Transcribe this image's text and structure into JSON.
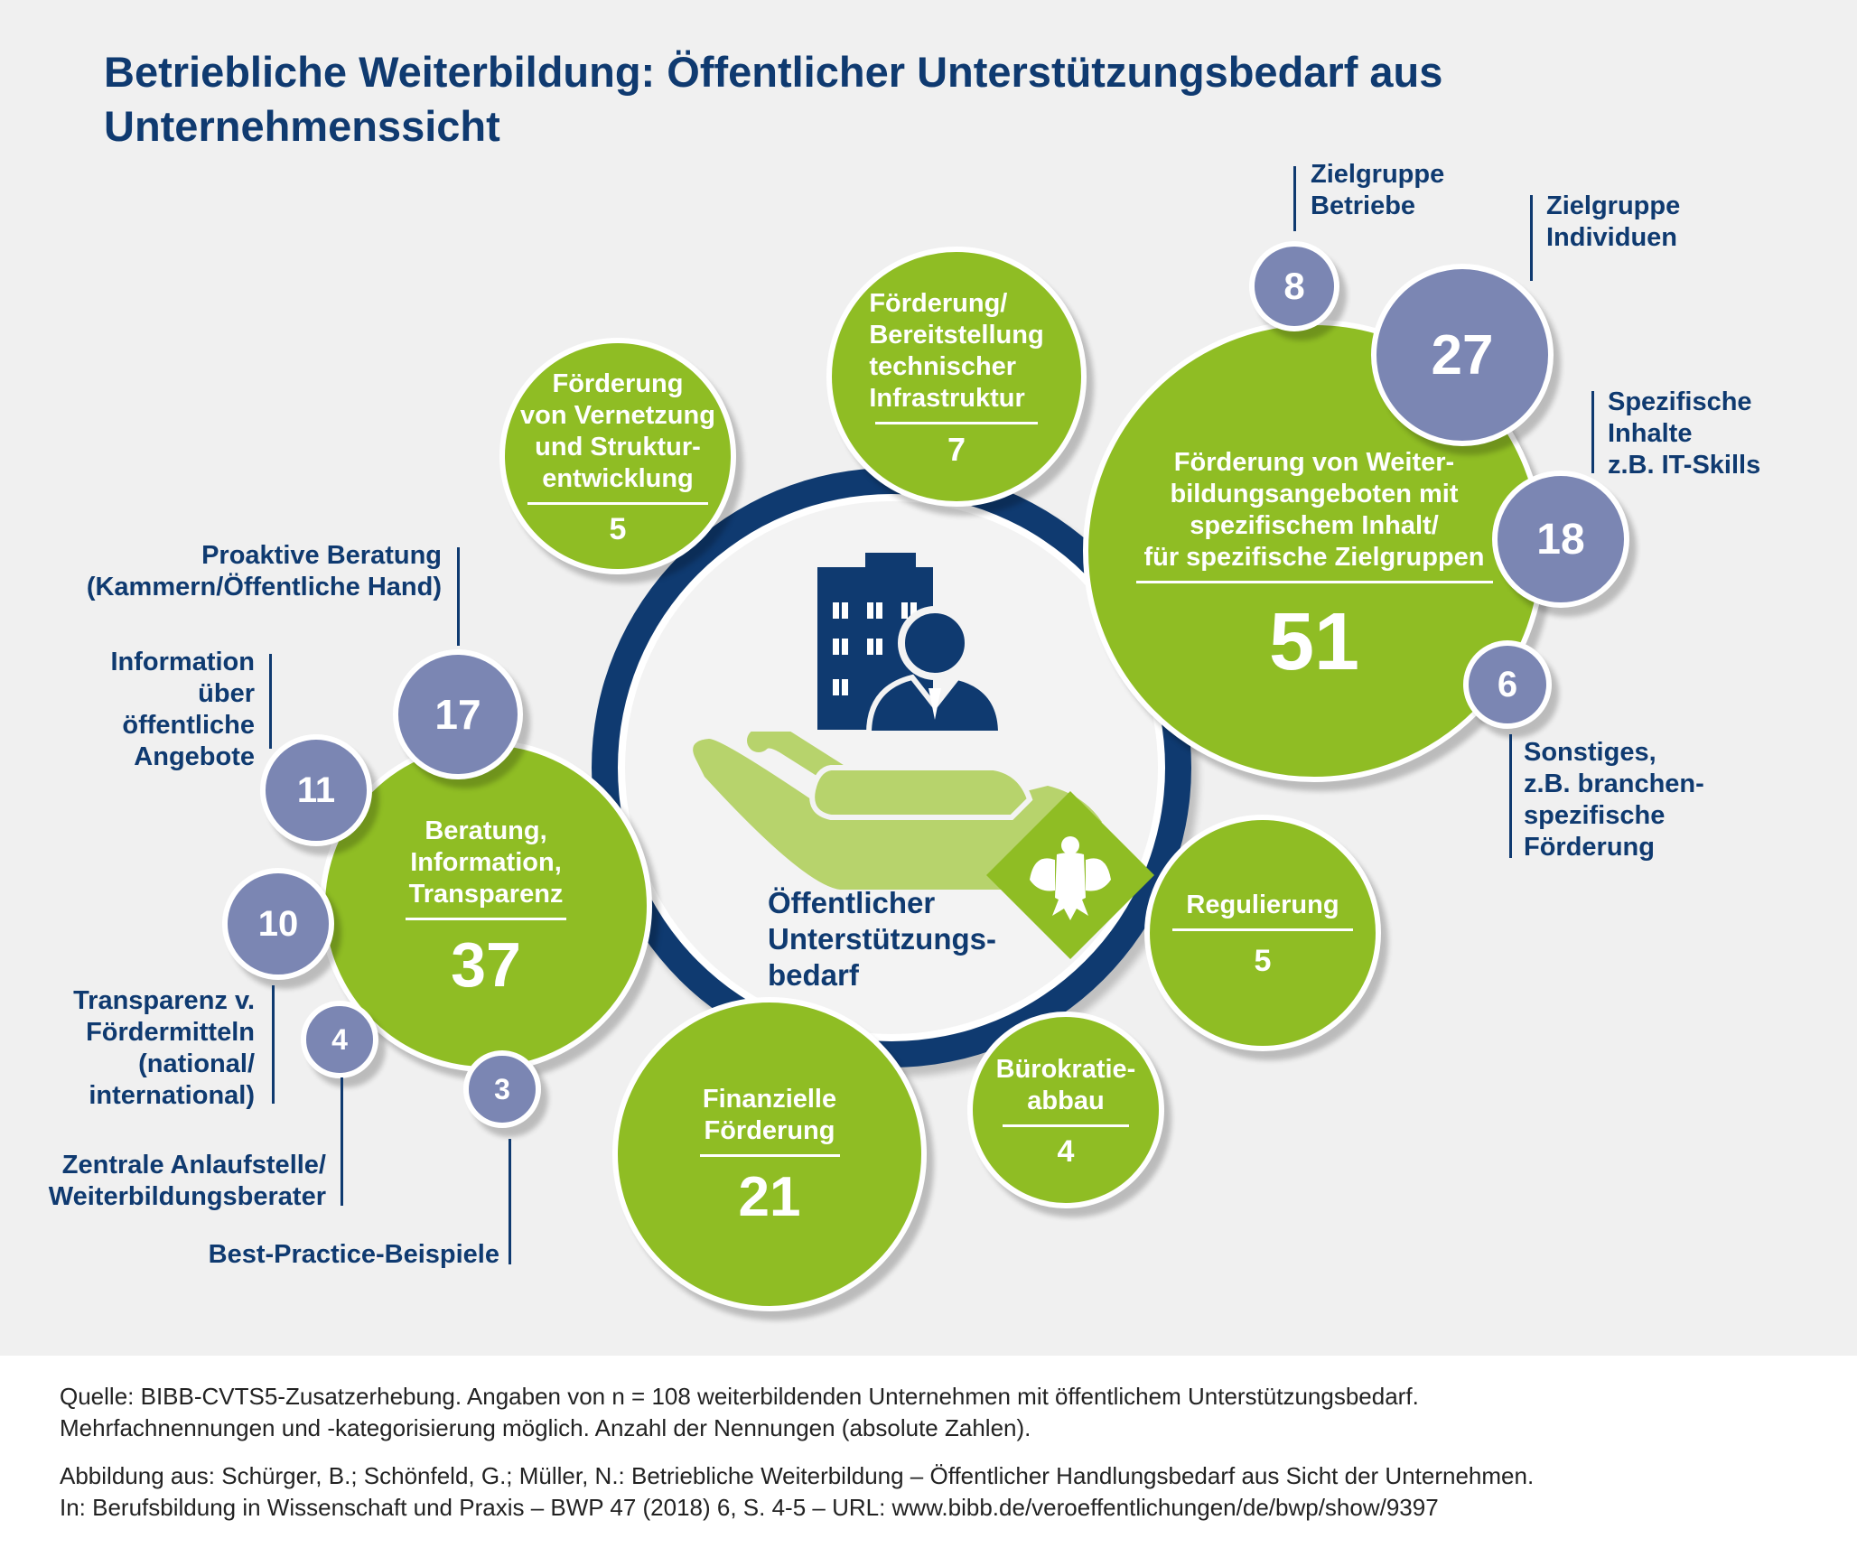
{
  "title": "Betriebliche Weiterbildung: Öffentlicher Unterstützungsbedarf aus\nUnternehmenssicht",
  "center_label": "Öffentlicher\nUnterstützungs-\nbedarf",
  "colors": {
    "navy": "#0f3a70",
    "green": "#8fbd24",
    "light_green": "#b7d36c",
    "purple": "#7b86b3"
  },
  "icons": [
    "building-person-icon",
    "open-hand-icon",
    "federal-eagle-icon"
  ],
  "categories": [
    {
      "label": "Förderung\nvon Vernetzung\nund Struktur-\nentwicklung",
      "value": "5"
    },
    {
      "label": "Förderung/\nBereitstellung\ntechnischer\nInfrastruktur",
      "value": "7"
    },
    {
      "label": "Förderung von Weiter-\nbildungsangeboten mit\nspezifischem Inhalt/\nfür spezifische Zielgruppen",
      "value": "51",
      "sub": [
        {
          "label": "Zielgruppe\nBetriebe",
          "value": "8"
        },
        {
          "label": "Zielgruppe\nIndividuen",
          "value": "27"
        },
        {
          "label": "Spezifische\nInhalte\nz.B. IT-Skills",
          "value": "18"
        },
        {
          "label": "Sonstiges,\nz.B. branchen-\nspezifische\nFörderung",
          "value": "6"
        }
      ]
    },
    {
      "label": "Regulierung",
      "value": "5"
    },
    {
      "label": "Bürokratie-\nabbau",
      "value": "4"
    },
    {
      "label": "Finanzielle\nFörderung",
      "value": "21"
    },
    {
      "label": "Beratung,\nInformation,\nTransparenz",
      "value": "37",
      "sub": [
        {
          "label": "Proaktive Beratung\n(Kammern/Öffentliche Hand)",
          "value": "17"
        },
        {
          "label": "Information\nüber\nöffentliche\nAngebote",
          "value": "11"
        },
        {
          "label": "Transparenz v.\nFördermitteln\n(national/\ninternational)",
          "value": "10"
        },
        {
          "label": "Zentrale Anlaufstelle/\nWeiterbildungsberater",
          "value": "4"
        },
        {
          "label": "Best-Practice-Beispiele",
          "value": "3"
        }
      ]
    }
  ],
  "footer": {
    "source": "Quelle: BIBB-CVTS5-Zusatzerhebung. Angaben von n = 108 weiterbildenden Unternehmen mit öffentlichem Unterstützungsbedarf.\nMehrfachnennungen und -kategorisierung möglich. Anzahl der Nennungen (absolute Zahlen).",
    "citation": "Abbildung aus: Schürger, B.; Schönfeld, G.; Müller, N.: Betriebliche Weiterbildung – Öffentlicher Handlungsbedarf aus Sicht der Unternehmen.\nIn: Berufsbildung in Wissenschaft und Praxis – BWP 47 (2018) 6, S. 4-5 – URL: www.bibb.de/veroeffentlichungen/de/bwp/show/9397"
  }
}
